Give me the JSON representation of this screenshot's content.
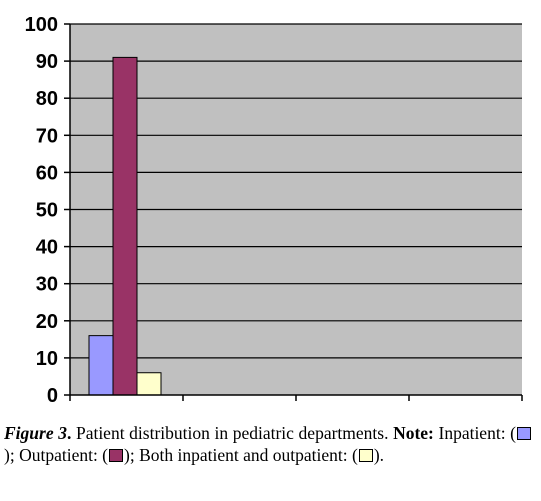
{
  "chart_data": {
    "type": "bar",
    "categories": [
      "",
      "",
      "",
      ""
    ],
    "series": [
      {
        "name": "Inpatient",
        "color": "#9999FF",
        "values": [
          16,
          null,
          null,
          null
        ]
      },
      {
        "name": "Outpatient",
        "color": "#993366",
        "values": [
          91,
          null,
          null,
          null
        ]
      },
      {
        "name": "Both inpatient and outpatient",
        "color": "#FFFFCC",
        "values": [
          6,
          null,
          null,
          null
        ]
      }
    ],
    "ylim": [
      0,
      100
    ],
    "yticks": [
      0,
      10,
      20,
      30,
      40,
      50,
      60,
      70,
      80,
      90,
      100
    ],
    "grid": true,
    "plot_background": "#C0C0C0",
    "legend": "none"
  },
  "caption": {
    "figure_label": "Figure 3",
    "figure_dot": ".",
    "text": " Patient distribution in pediatric departments. ",
    "note_label": "Note:",
    "inpatient_label": " Inpatient: (",
    "inpatient_close": "); ",
    "outpatient_label": "Outpatient: (",
    "outpatient_close": "); ",
    "both_label": "Both inpatient and outpatient: (",
    "both_close": ")."
  }
}
